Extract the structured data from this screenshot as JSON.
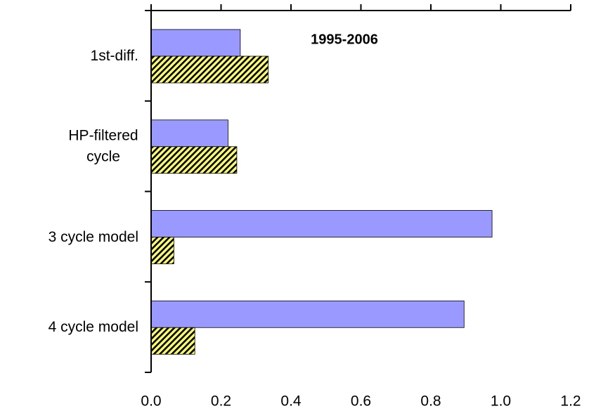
{
  "chart_data": {
    "type": "hbar",
    "annotation": "1995-2006",
    "categories": [
      "1st-diff.",
      "HP-filtered cycle",
      "3 cycle model",
      "4 cycle model"
    ],
    "series": [
      {
        "color": "#9999ff",
        "values": [
          0.255,
          0.22,
          0.975,
          0.895
        ]
      },
      {
        "color": "#ffff66",
        "hatch": true,
        "values": [
          0.335,
          0.245,
          0.065,
          0.125
        ]
      }
    ],
    "xlim": [
      0,
      1.2
    ],
    "xticks": [
      {
        "value": 0,
        "label": "0.0"
      },
      0.2,
      0.4,
      0.6,
      0.8,
      {
        "value": 1,
        "label": "1.0"
      },
      1.2
    ]
  }
}
